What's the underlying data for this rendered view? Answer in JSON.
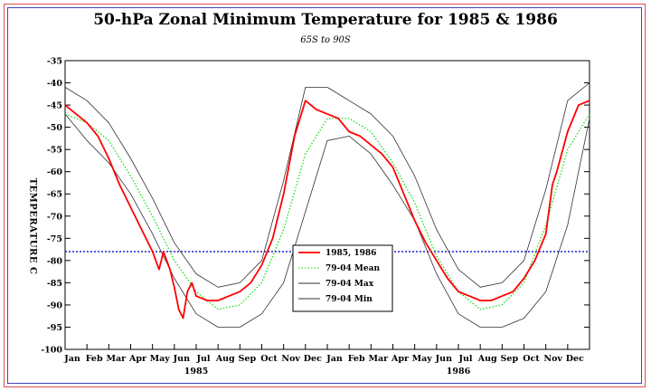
{
  "chart_data": {
    "type": "line",
    "title": "50-hPa Zonal Minimum Temperature for 1985 & 1986",
    "subtitle": "65S to 90S",
    "ylabel": "TEMPERATURE C",
    "xlabel": "",
    "ylim": [
      -100,
      -35
    ],
    "yticks": [
      -35,
      -40,
      -45,
      -50,
      -55,
      -60,
      -65,
      -70,
      -75,
      -80,
      -85,
      -90,
      -95,
      -100
    ],
    "months": [
      "Jan",
      "Feb",
      "Mar",
      "Apr",
      "May",
      "Jun",
      "Jul",
      "Aug",
      "Sep",
      "Oct",
      "Nov",
      "Dec",
      "Jan",
      "Feb",
      "Mar",
      "Apr",
      "May",
      "Jun",
      "Jul",
      "Aug",
      "Sep",
      "Oct",
      "Nov",
      "Dec"
    ],
    "years": [
      {
        "label": "1985",
        "month": 6
      },
      {
        "label": "1986",
        "month": 18
      }
    ],
    "reference_line": {
      "value": -78,
      "color": "#2020d0"
    },
    "legend_position": "center",
    "series": [
      {
        "name": "1985, 1986",
        "color": "#ff0000",
        "style": "solid",
        "x": [
          0,
          0.5,
          1,
          1.5,
          2,
          2.5,
          3,
          3.5,
          4,
          4.3,
          4.5,
          4.8,
          5,
          5.2,
          5.4,
          5.6,
          5.8,
          6,
          6.5,
          7,
          7.5,
          8,
          8.5,
          9,
          9.5,
          10,
          10.5,
          11,
          11.5,
          12,
          12.5,
          13,
          13.5,
          14,
          14.5,
          15,
          15.5,
          16,
          16.5,
          17,
          17.5,
          18,
          18.5,
          19,
          19.5,
          20,
          20.5,
          21,
          21.5,
          22,
          22.3,
          22.5,
          23,
          23.5,
          24
        ],
        "values": [
          -45,
          -47,
          -49,
          -52,
          -57,
          -63,
          -68,
          -73,
          -78,
          -82,
          -78,
          -82,
          -86,
          -91,
          -93,
          -87,
          -85,
          -88,
          -89,
          -89,
          -88,
          -87,
          -85,
          -81,
          -75,
          -65,
          -52,
          -44,
          -46,
          -47,
          -48,
          -51,
          -52,
          -54,
          -56,
          -59,
          -65,
          -71,
          -76,
          -80,
          -84,
          -87,
          -88,
          -89,
          -89,
          -88,
          -87,
          -84,
          -80,
          -74,
          -63,
          -60,
          -51,
          -45,
          -44
        ]
      },
      {
        "name": "79-04 Mean",
        "color": "#00dd00",
        "style": "dotted",
        "x": [
          0,
          1,
          2,
          3,
          4,
          5,
          6,
          7,
          8,
          9,
          10,
          11,
          12,
          13,
          14,
          15,
          16,
          17,
          18,
          19,
          20,
          21,
          22,
          23,
          24
        ],
        "values": [
          -47,
          -49,
          -53,
          -61,
          -70,
          -80,
          -87,
          -91,
          -90,
          -85,
          -73,
          -56,
          -48,
          -48,
          -51,
          -58,
          -67,
          -79,
          -87,
          -91,
          -90,
          -85,
          -72,
          -55,
          -47
        ]
      },
      {
        "name": "79-04 Max",
        "color": "#303030",
        "style": "solid",
        "x": [
          0,
          1,
          2,
          3,
          4,
          5,
          6,
          7,
          8,
          9,
          10,
          11,
          12,
          13,
          14,
          15,
          16,
          17,
          18,
          19,
          20,
          21,
          22,
          23,
          24
        ],
        "values": [
          -41,
          -44,
          -49,
          -57,
          -66,
          -76,
          -83,
          -86,
          -85,
          -80,
          -62,
          -41,
          -41,
          -44,
          -47,
          -52,
          -61,
          -73,
          -82,
          -86,
          -85,
          -80,
          -64,
          -44,
          -40
        ]
      },
      {
        "name": "79-04 Min",
        "color": "#303030",
        "style": "solid",
        "x": [
          0,
          1,
          2,
          3,
          4,
          5,
          6,
          7,
          8,
          9,
          10,
          11,
          12,
          13,
          14,
          15,
          16,
          17,
          18,
          19,
          20,
          21,
          22,
          23,
          24
        ],
        "values": [
          -47,
          -53,
          -58,
          -65,
          -74,
          -84,
          -92,
          -95,
          -95,
          -92,
          -85,
          -69,
          -53,
          -52,
          -56,
          -63,
          -71,
          -83,
          -92,
          -95,
          -95,
          -93,
          -87,
          -72,
          -48
        ]
      }
    ]
  }
}
